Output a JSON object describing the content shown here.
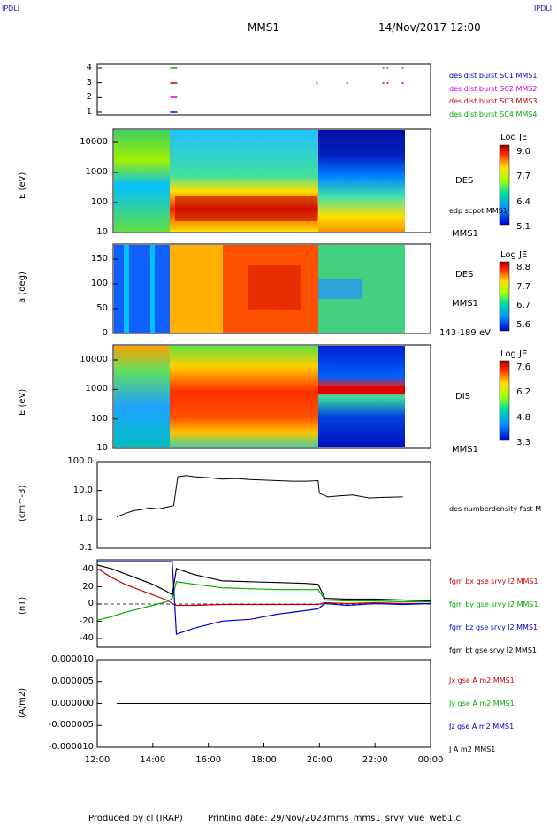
{
  "corner_left": "IPDLI",
  "corner_right": "IPDLI",
  "title": "MMS1",
  "datetime": "14/Nov/2017 12:00",
  "footer": {
    "produced_by": "Produced by cl (IRAP)",
    "printing_date": "Printing date: 29/Nov/2023",
    "file": "mms_mms1_srvy_vue_web1.cl"
  },
  "panels": {
    "burst": {
      "ticks": [
        "4",
        "3",
        "2",
        "1"
      ],
      "labels": [
        {
          "text": "des dist burst SC1 MMS1",
          "color": "#0000cc"
        },
        {
          "text": "des dist burst SC2 MMS2",
          "color": "#cc00cc"
        },
        {
          "text": "des dist burst SC3 MMS3",
          "color": "#cc0000"
        },
        {
          "text": "des dist burst SC4 MMS4",
          "color": "#00aa00"
        }
      ]
    },
    "des_energy": {
      "ylabel": "E (eV)",
      "ticks": [
        "10000",
        "1000",
        "100",
        "10"
      ],
      "right_labels": [
        "DES",
        "edp scpot MMS1",
        "MMS1"
      ],
      "colorbar": {
        "title": "Log JE",
        "ticks": [
          "9.0",
          "7.7",
          "6.4",
          "5.1"
        ]
      }
    },
    "des_pitch": {
      "ylabel": "a (deg)",
      "ticks": [
        "150",
        "100",
        "50",
        "0"
      ],
      "right_labels": [
        "DES",
        "MMS1",
        "143-189 eV"
      ],
      "colorbar": {
        "title": "Log JE",
        "ticks": [
          "8.8",
          "7.7",
          "6.7",
          "5.6"
        ]
      }
    },
    "dis_energy": {
      "ylabel": "E (eV)",
      "ticks": [
        "10000",
        "1000",
        "100",
        "10"
      ],
      "right_labels": [
        "DIS",
        "MMS1"
      ],
      "colorbar": {
        "title": "Log JE",
        "ticks": [
          "7.6",
          "6.2",
          "4.8",
          "3.3"
        ]
      }
    },
    "density": {
      "ylabel": "(cm^-3)",
      "ticks": [
        "100.0",
        "10.0",
        "1.0",
        "0.1"
      ],
      "right_labels": [
        "des numberdensity fast M"
      ]
    },
    "bfield": {
      "ylabel": "(nT)",
      "ticks": [
        "40",
        "20",
        "0",
        "-20",
        "-40"
      ],
      "labels": [
        {
          "text": "fgm bx gse srvy l2 MMS1",
          "color": "#cc0000"
        },
        {
          "text": "fgm by gse srvy l2 MMS1",
          "color": "#00aa00"
        },
        {
          "text": "fgm bz gse srvy l2 MMS1",
          "color": "#0000cc"
        },
        {
          "text": "fgm bt gse srvy l2 MMS1",
          "color": "#000000"
        }
      ]
    },
    "current": {
      "ylabel": "(A/m2)",
      "ticks": [
        "0.000010",
        "0.000005",
        "0.000000",
        "-0.000005",
        "-0.000010"
      ],
      "labels": [
        {
          "text": "Jx gse A m2 MMS1",
          "color": "#cc0000"
        },
        {
          "text": "Jy gse A m2 MMS1",
          "color": "#00aa00"
        },
        {
          "text": "Jz gse A m2 MMS1",
          "color": "#0000cc"
        },
        {
          "text": "J A m2 MMS1",
          "color": "#000000"
        }
      ]
    }
  },
  "xaxis": {
    "ticks": [
      "12:00",
      "14:00",
      "16:00",
      "18:00",
      "20:00",
      "22:00",
      "00:00"
    ]
  },
  "chart_data": [
    {
      "type": "scatter",
      "name": "burst intervals",
      "x_hours": [
        14.75,
        19.9,
        21.0,
        22.3,
        22.45,
        23.0
      ],
      "ylim": [
        0.5,
        4.5
      ]
    },
    {
      "type": "heatmap",
      "name": "DES energy spectrogram",
      "ylabel": "E (eV)",
      "yscale": "log",
      "ylim": [
        10,
        30000
      ],
      "xlim_hours": [
        12,
        24
      ],
      "data_x_range_hours": [
        12.6,
        23.1
      ],
      "zlim_logJE": [
        5.1,
        9.0
      ]
    },
    {
      "type": "heatmap",
      "name": "DES pitch angle 143-189 eV",
      "ylabel": "a (deg)",
      "ylim": [
        0,
        180
      ],
      "zlim_logJE": [
        5.6,
        8.8
      ]
    },
    {
      "type": "heatmap",
      "name": "DIS energy spectrogram",
      "ylabel": "E (eV)",
      "yscale": "log",
      "ylim": [
        10,
        30000
      ],
      "zlim_logJE": [
        3.3,
        7.6
      ]
    },
    {
      "type": "line",
      "name": "des numberdensity fast",
      "ylabel": "(cm^-3)",
      "yscale": "log",
      "ylim": [
        0.1,
        100
      ],
      "x_hours": [
        12.7,
        13.0,
        13.3,
        13.6,
        13.9,
        14.2,
        14.6,
        14.75,
        14.9,
        15.2,
        15.5,
        16.0,
        16.5,
        17.0,
        17.5,
        18.0,
        18.5,
        19.0,
        19.5,
        19.95,
        20.0,
        20.3,
        20.7,
        21.2,
        21.8,
        22.3,
        23.0
      ],
      "y": [
        1.2,
        1.6,
        2.0,
        2.2,
        2.5,
        2.3,
        2.8,
        3.0,
        30,
        33,
        30,
        28,
        25,
        26,
        24,
        23,
        22,
        21,
        21,
        22,
        8,
        6,
        6.5,
        7,
        5.5,
        5.8,
        6
      ]
    },
    {
      "type": "line",
      "name": "fgm gse srvy l2",
      "ylabel": "(nT)",
      "ylim": [
        -50,
        50
      ],
      "x_hours": [
        12.0,
        12.5,
        13.0,
        13.5,
        14.0,
        14.5,
        14.7,
        14.85,
        15.5,
        16.5,
        17.5,
        18.5,
        19.5,
        19.95,
        20.2,
        21.0,
        22.0,
        23.0,
        24.0
      ],
      "series": [
        {
          "name": "fgm bx gse srvy l2 MMS1",
          "color": "#cc0000",
          "values": [
            40,
            30,
            22,
            16,
            10,
            4,
            0,
            -2,
            -2,
            -1,
            -1,
            -1,
            -1,
            -1,
            1,
            0,
            1,
            0,
            0
          ]
        },
        {
          "name": "fgm by gse srvy l2 MMS1",
          "color": "#00aa00",
          "values": [
            -19,
            -15,
            -10,
            -6,
            -2,
            2,
            6,
            25,
            22,
            18,
            17,
            16,
            16,
            16,
            4,
            3,
            3,
            2,
            2
          ]
        },
        {
          "name": "fgm bz gse srvy l2 MMS1",
          "color": "#0000cc",
          "values": [
            48,
            48,
            48,
            48,
            48,
            48,
            48,
            -35,
            -28,
            -20,
            -18,
            -12,
            -8,
            -6,
            0,
            -2,
            0,
            -1,
            0
          ]
        },
        {
          "name": "fgm bt gse srvy l2 MMS1",
          "color": "#000000",
          "values": [
            44,
            40,
            34,
            28,
            22,
            14,
            10,
            40,
            33,
            26,
            25,
            24,
            23,
            22,
            6,
            5,
            5,
            4,
            3
          ]
        }
      ]
    },
    {
      "type": "line",
      "name": "J gse A m2",
      "ylabel": "(A/m2)",
      "ylim": [
        -1e-05,
        1e-05
      ],
      "x_hours": [
        12.7,
        24.0
      ],
      "y": [
        0.0,
        0.0
      ]
    }
  ]
}
